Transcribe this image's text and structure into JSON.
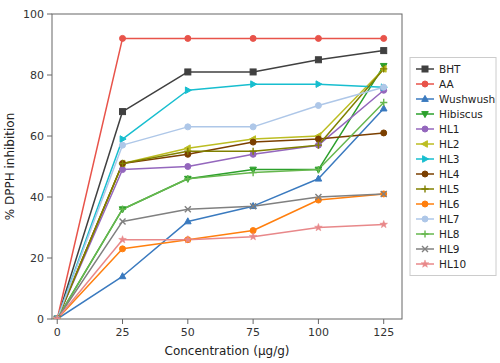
{
  "chart_data": {
    "type": "line",
    "xlabel": "Concentration (μg/g)",
    "ylabel": "% DPPH inhibition",
    "x": [
      0,
      25,
      50,
      75,
      100,
      125
    ],
    "series": [
      {
        "name": "BHT",
        "color": "#404040",
        "marker": "square",
        "values": [
          0,
          68,
          81,
          81,
          85,
          88
        ]
      },
      {
        "name": "AA",
        "color": "#e8534a",
        "marker": "circle",
        "values": [
          0,
          92,
          92,
          92,
          92,
          92
        ]
      },
      {
        "name": "Wushwush",
        "color": "#3a7abf",
        "marker": "triangle-up",
        "values": [
          0,
          14,
          32,
          37,
          46,
          69
        ]
      },
      {
        "name": "Hibiscus",
        "color": "#2ca02c",
        "marker": "triangle-down",
        "values": [
          0,
          36,
          46,
          49,
          49,
          83
        ]
      },
      {
        "name": "HL1",
        "color": "#9467bd",
        "marker": "circle",
        "values": [
          0,
          49,
          50,
          54,
          57,
          75
        ]
      },
      {
        "name": "HL2",
        "color": "#bcbd22",
        "marker": "triangle-left",
        "values": [
          0,
          51,
          56,
          59,
          60,
          82
        ]
      },
      {
        "name": "HL3",
        "color": "#17becf",
        "marker": "triangle-right",
        "values": [
          0,
          59,
          75,
          77,
          77,
          76
        ]
      },
      {
        "name": "HL4",
        "color": "#7b3f00",
        "marker": "circle",
        "values": [
          0,
          51,
          54,
          58,
          59,
          61
        ]
      },
      {
        "name": "HL5",
        "color": "#808000",
        "marker": "plus",
        "values": [
          0,
          51,
          55,
          55,
          57,
          82
        ]
      },
      {
        "name": "HL6",
        "color": "#ff7f0e",
        "marker": "circle",
        "values": [
          0,
          23,
          26,
          29,
          39,
          41
        ]
      },
      {
        "name": "HL7",
        "color": "#aec7e8",
        "marker": "circle",
        "values": [
          0,
          57,
          63,
          63,
          70,
          76
        ]
      },
      {
        "name": "HL8",
        "color": "#66b74e",
        "marker": "plus",
        "values": [
          0,
          36,
          46,
          48,
          49,
          71
        ]
      },
      {
        "name": "HL9",
        "color": "#808080",
        "marker": "x",
        "values": [
          0,
          32,
          36,
          37,
          40,
          41
        ]
      },
      {
        "name": "HL10",
        "color": "#e8888a",
        "marker": "star",
        "values": [
          0,
          26,
          26,
          27,
          30,
          31
        ]
      }
    ],
    "xlim": [
      -2,
      132
    ],
    "ylim": [
      0,
      100
    ],
    "xticks": [
      0,
      25,
      50,
      75,
      100,
      125
    ],
    "yticks": [
      0,
      20,
      40,
      60,
      80,
      100
    ],
    "grid": false,
    "legend": "right"
  }
}
